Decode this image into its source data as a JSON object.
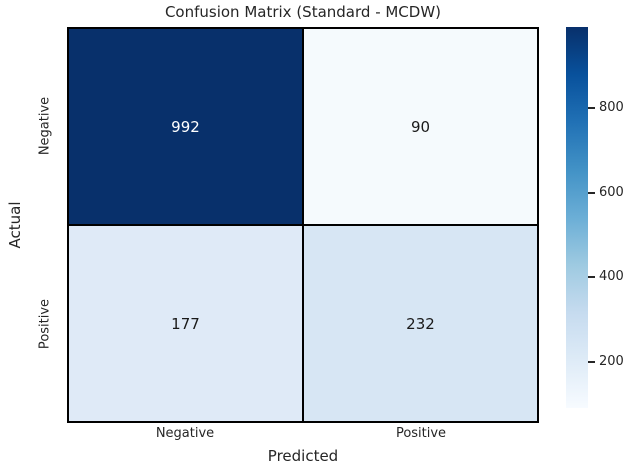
{
  "chart_data": {
    "type": "heatmap",
    "title": "Confusion Matrix (Standard - MCDW)",
    "xlabel": "Predicted",
    "ylabel": "Actual",
    "col_labels": [
      "Negative",
      "Positive"
    ],
    "row_labels": [
      "Negative",
      "Positive"
    ],
    "matrix": [
      [
        992,
        90
      ],
      [
        177,
        232
      ]
    ],
    "colormap": "Blues",
    "vmin": 90,
    "vmax": 992,
    "cell_colors": [
      [
        "#08306b",
        "#f5fafd"
      ],
      [
        "#dfeaf7",
        "#d7e6f4"
      ]
    ],
    "cell_text_colors": [
      [
        "#ffffff",
        "#1a1a1a"
      ],
      [
        "#1a1a1a",
        "#1a1a1a"
      ]
    ],
    "grid_line_color": "#000000",
    "text_color": "#262626",
    "colorbar": {
      "ticks": [
        200,
        400,
        600,
        800
      ],
      "color_top": "#08306b",
      "color_bottom": "#f7fbff"
    }
  }
}
